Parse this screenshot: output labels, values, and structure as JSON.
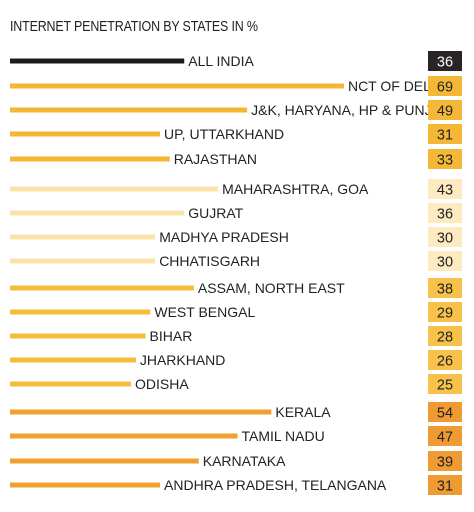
{
  "chart_data": {
    "type": "bar",
    "title": "INTERNET PENETRATION BY STATES IN %",
    "categories": [
      "ALL INDIA",
      "NCT OF DELHI",
      "J&K, HARYANA, HP & PUNJAB",
      "UP, UTTARKHAND",
      "RAJASTHAN",
      "MAHARASHTRA, GOA",
      "GUJRAT",
      "MADHYA PRADESH",
      "CHHATISGARH",
      "ASSAM, NORTH EAST",
      "WEST BENGAL",
      "BIHAR",
      "JHARKHAND",
      "ODISHA",
      "KERALA",
      "TAMIL NADU",
      "KARNATAKA",
      "ANDHRA PRADESH, TELANGANA"
    ],
    "values": [
      36,
      69,
      49,
      31,
      33,
      43,
      36,
      30,
      30,
      38,
      29,
      28,
      26,
      25,
      54,
      47,
      39,
      31
    ],
    "groups": [
      0,
      1,
      1,
      1,
      1,
      2,
      2,
      2,
      2,
      3,
      3,
      3,
      3,
      3,
      4,
      4,
      4,
      4
    ],
    "group_colors": {
      "bar": [
        "#1f1a1c",
        "#f3b733",
        "#fbe3ac",
        "#f5bd38",
        "#f0a030"
      ],
      "box": [
        "#2a2428",
        "#f5b836",
        "#fdeac0",
        "#f8c24a",
        "#ef9a32"
      ],
      "box_text": [
        "#ffffff",
        "#222222",
        "#222222",
        "#222222",
        "#222222"
      ]
    }
  }
}
